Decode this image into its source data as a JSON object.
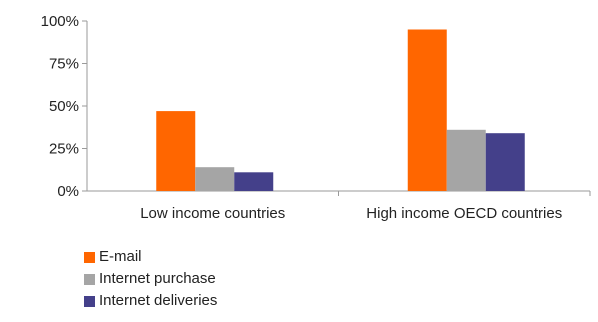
{
  "chart_data": {
    "type": "bar",
    "categories": [
      "Low income countries",
      "High income OECD countries"
    ],
    "series": [
      {
        "name": "E-mail",
        "values": [
          47,
          95
        ],
        "color": "#ff6600"
      },
      {
        "name": "Internet purchase",
        "values": [
          14,
          36
        ],
        "color": "#a5a5a5"
      },
      {
        "name": "Internet deliveries",
        "values": [
          11,
          34
        ],
        "color": "#44408a"
      }
    ],
    "ylim": [
      0,
      100
    ],
    "yticks": [
      "0%",
      "25%",
      "50%",
      "75%",
      "100%"
    ],
    "ytick_values": [
      0,
      25,
      50,
      75,
      100
    ],
    "grid": false,
    "legend_position": "bottom-left"
  }
}
